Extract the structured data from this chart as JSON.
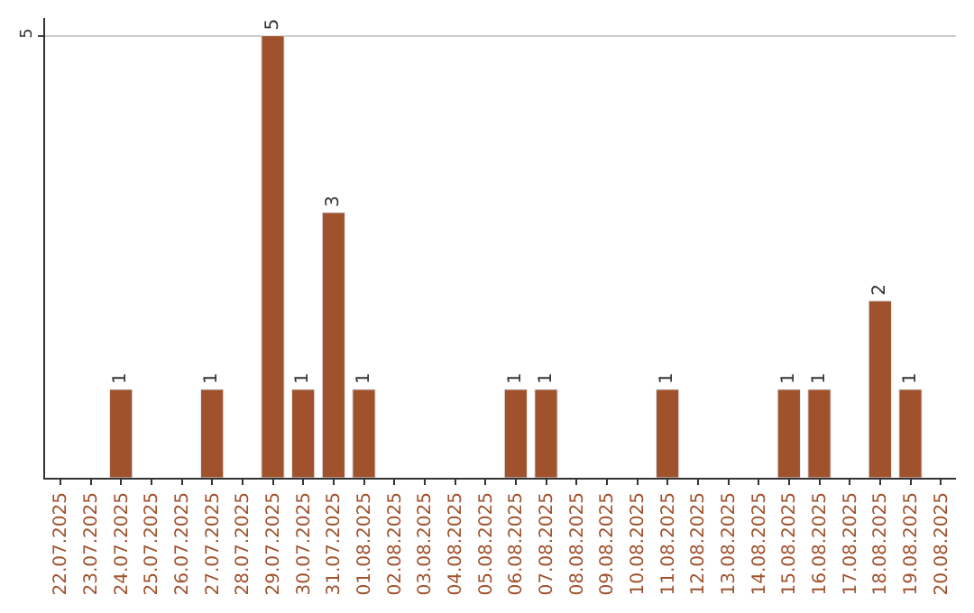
{
  "chart_data": {
    "type": "bar",
    "categories": [
      "22.07.2025",
      "23.07.2025",
      "24.07.2025",
      "25.07.2025",
      "26.07.2025",
      "27.07.2025",
      "28.07.2025",
      "29.07.2025",
      "30.07.2025",
      "31.07.2025",
      "01.08.2025",
      "02.08.2025",
      "03.08.2025",
      "04.08.2025",
      "05.08.2025",
      "06.08.2025",
      "07.08.2025",
      "08.08.2025",
      "09.08.2025",
      "10.08.2025",
      "11.08.2025",
      "12.08.2025",
      "13.08.2025",
      "14.08.2025",
      "15.08.2025",
      "16.08.2025",
      "17.08.2025",
      "18.08.2025",
      "19.08.2025",
      "20.08.2025"
    ],
    "values": [
      null,
      null,
      1,
      null,
      null,
      1,
      null,
      5,
      1,
      3,
      1,
      null,
      null,
      null,
      null,
      1,
      1,
      null,
      null,
      null,
      1,
      null,
      null,
      null,
      1,
      1,
      null,
      2,
      1,
      null
    ],
    "value_labels": [
      null,
      null,
      "1",
      null,
      null,
      "1",
      null,
      "5",
      "1",
      "3",
      "1",
      null,
      null,
      null,
      null,
      "1",
      "1",
      null,
      null,
      null,
      "1",
      null,
      null,
      null,
      "1",
      "1",
      null,
      "2",
      "1",
      null
    ],
    "color": "#a0522d",
    "ylim": [
      0,
      5.2
    ],
    "yticks": [
      5
    ],
    "grid": "y",
    "legend": false
  }
}
